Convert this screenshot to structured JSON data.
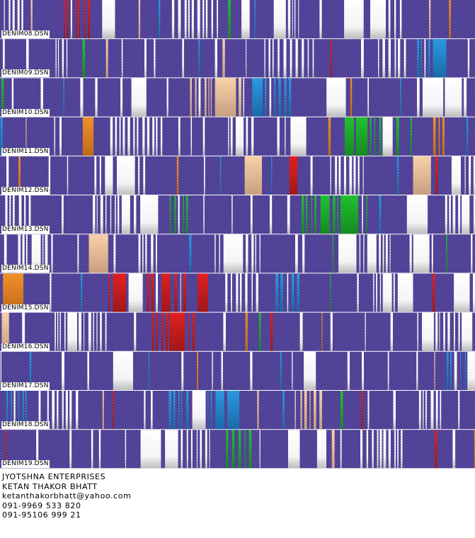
{
  "designs": [
    {
      "label": "DENIM08.DSN"
    },
    {
      "label": "DENIM09.DSN"
    },
    {
      "label": "DENIM10.DSN"
    },
    {
      "label": "DENIM11.DSN"
    },
    {
      "label": "DENIM12.DSN"
    },
    {
      "label": "DENIM13.DSN"
    },
    {
      "label": "DENIM14.DSN"
    },
    {
      "label": "DENIM15.DSN"
    },
    {
      "label": "DENIM16.DSN"
    },
    {
      "label": "DENIM17.DSN"
    },
    {
      "label": "DENIM18.DSN"
    },
    {
      "label": "DENIM19.DSN"
    }
  ],
  "contact": {
    "company": "JYOTSHNA ENTERPRISES",
    "name": "KETAN THAKOR BHATT",
    "email": "ketanthakorbhatt@yahoo.com",
    "phone1": "091-9969 533 820",
    "phone2": "091-95106 999 21"
  }
}
